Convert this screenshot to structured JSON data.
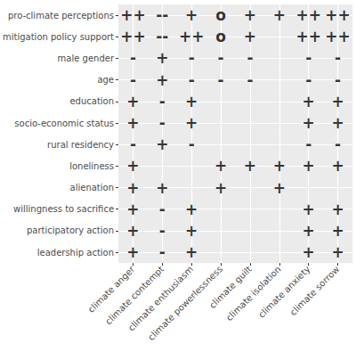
{
  "chart_data": {
    "type": "scatter",
    "x": [
      "climate anger",
      "climate contempt",
      "climate enthusiasm",
      "climate powerlessness",
      "climate guilt",
      "climate isolation",
      "climate anxiety",
      "climate sorrow"
    ],
    "y": [
      "pro-climate perceptions",
      "mitigation policy support",
      "male gender",
      "age",
      "education",
      "socio-economic status",
      "rural residency",
      "loneliness",
      "alienation",
      "willingness to sacrifice",
      "participatory action",
      "leadership action"
    ],
    "cells": [
      [
        "++",
        "--",
        "+",
        "o",
        "+",
        "+",
        "++",
        "++"
      ],
      [
        "++",
        "--",
        "++",
        "o",
        "+",
        null,
        "++",
        "++"
      ],
      [
        "-",
        "+",
        "-",
        "-",
        "-",
        null,
        "-",
        "-"
      ],
      [
        "-",
        "+",
        "-",
        "-",
        "-",
        null,
        "-",
        "-"
      ],
      [
        "+",
        "-",
        "+",
        null,
        null,
        null,
        "+",
        "+"
      ],
      [
        "+",
        "-",
        "+",
        null,
        null,
        null,
        "+",
        "+"
      ],
      [
        "-",
        "+",
        "-",
        null,
        null,
        null,
        "-",
        "-"
      ],
      [
        "+",
        null,
        null,
        "+",
        "+",
        "+",
        "+",
        "+"
      ],
      [
        "+",
        "+",
        null,
        "+",
        null,
        "+",
        null,
        null
      ],
      [
        "+",
        "-",
        "+",
        null,
        null,
        null,
        "+",
        "+"
      ],
      [
        "+",
        "-",
        "+",
        null,
        null,
        null,
        "+",
        "+"
      ],
      [
        "+",
        "-",
        "+",
        null,
        null,
        null,
        "+",
        "+"
      ]
    ],
    "grid": true
  }
}
